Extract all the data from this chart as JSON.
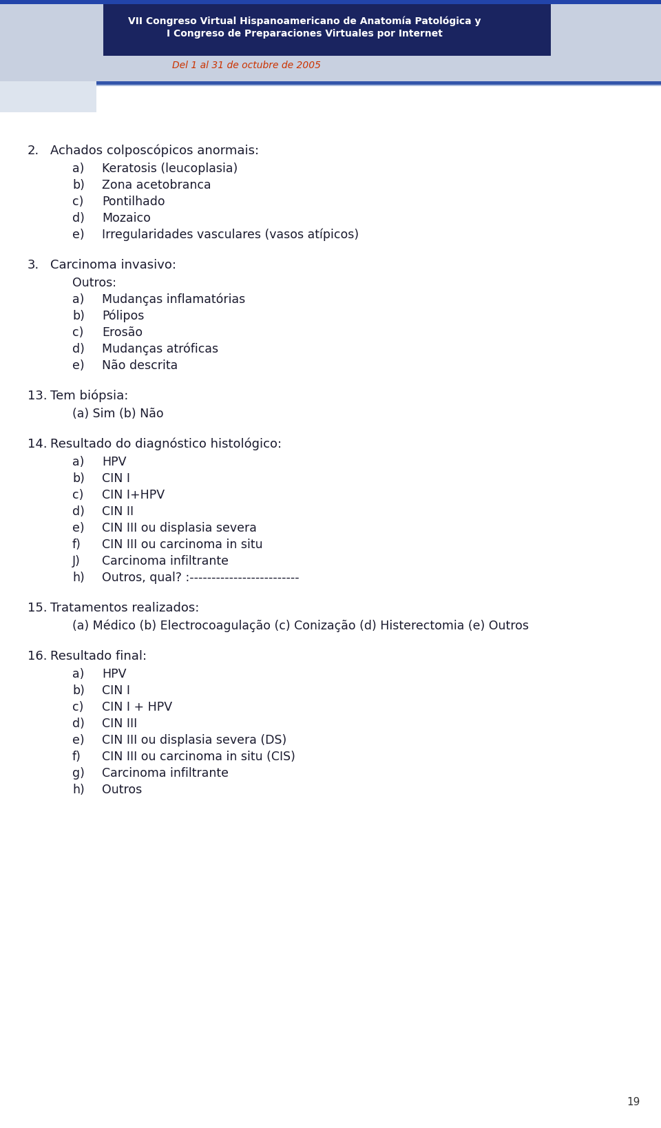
{
  "background_color": "#ffffff",
  "page_number": "19",
  "header": {
    "title_line1": "VII Congreso Virtual Hispanoamericano de Anatomía Patológica y",
    "title_line2": "I Congreso de Preparaciones Virtuales por Internet",
    "date": "Del 1 al 31 de octubre de 2005",
    "title_color": "#ffffff",
    "date_color": "#cc3300"
  },
  "body_text_color": "#1a1a2e",
  "body_font_size": 13.0,
  "sections": [
    {
      "number": "2.",
      "title": "Achados colposcópicos anormais:",
      "subtitle": null,
      "items": [
        [
          "a)",
          "Keratosis (leucoplasia)"
        ],
        [
          "b)",
          "Zona acetobranca"
        ],
        [
          "c)",
          "Pontilhado"
        ],
        [
          "d)",
          "Mozaico"
        ],
        [
          "e)",
          "Irregularidades vasculares (vasos atípicos)"
        ]
      ]
    },
    {
      "number": "3.",
      "title": "Carcinoma invasivo:",
      "subtitle": "Outros:",
      "items": [
        [
          "a)",
          "Mudanças inflamatórias"
        ],
        [
          "b)",
          "Pólipos"
        ],
        [
          "c)",
          "Erosão"
        ],
        [
          "d)",
          "Mudanças atróficas"
        ],
        [
          "e)",
          "Não descrita"
        ]
      ]
    },
    {
      "number": "13.",
      "title": "Tem biópsia:",
      "subtitle": null,
      "items": [
        [
          "",
          "(a) Sim (b) Não"
        ]
      ]
    },
    {
      "number": "14.",
      "title": "Resultado do diagnóstico histológico:",
      "subtitle": null,
      "items": [
        [
          "a)",
          "HPV"
        ],
        [
          "b)",
          "CIN I"
        ],
        [
          "c)",
          "CIN I+HPV"
        ],
        [
          "d)",
          "CIN II"
        ],
        [
          "e)",
          "CIN III ou displasia severa"
        ],
        [
          "f)",
          "CIN III ou carcinoma in situ"
        ],
        [
          "J)",
          "Carcinoma infiltrante"
        ],
        [
          "h)",
          "Outros, qual? :-------------------------"
        ]
      ]
    },
    {
      "number": "15.",
      "title": "Tratamentos realizados:",
      "subtitle": null,
      "items": [
        [
          "",
          "(a) Médico (b) Electrocoagulação (c) Conização (d) Histerectomia (e) Outros"
        ]
      ]
    },
    {
      "number": "16.",
      "title": "Resultado final:",
      "subtitle": null,
      "items": [
        [
          "a)",
          "HPV"
        ],
        [
          "b)",
          "CIN I"
        ],
        [
          "c)",
          "CIN I + HPV"
        ],
        [
          "d)",
          "CIN III"
        ],
        [
          "e)",
          "CIN III ou displasia severa (DS)"
        ],
        [
          "f)",
          "CIN III ou carcinoma in situ (CIS)"
        ],
        [
          "g)",
          "Carcinoma infiltrante"
        ],
        [
          "h)",
          "Outros"
        ]
      ]
    }
  ]
}
